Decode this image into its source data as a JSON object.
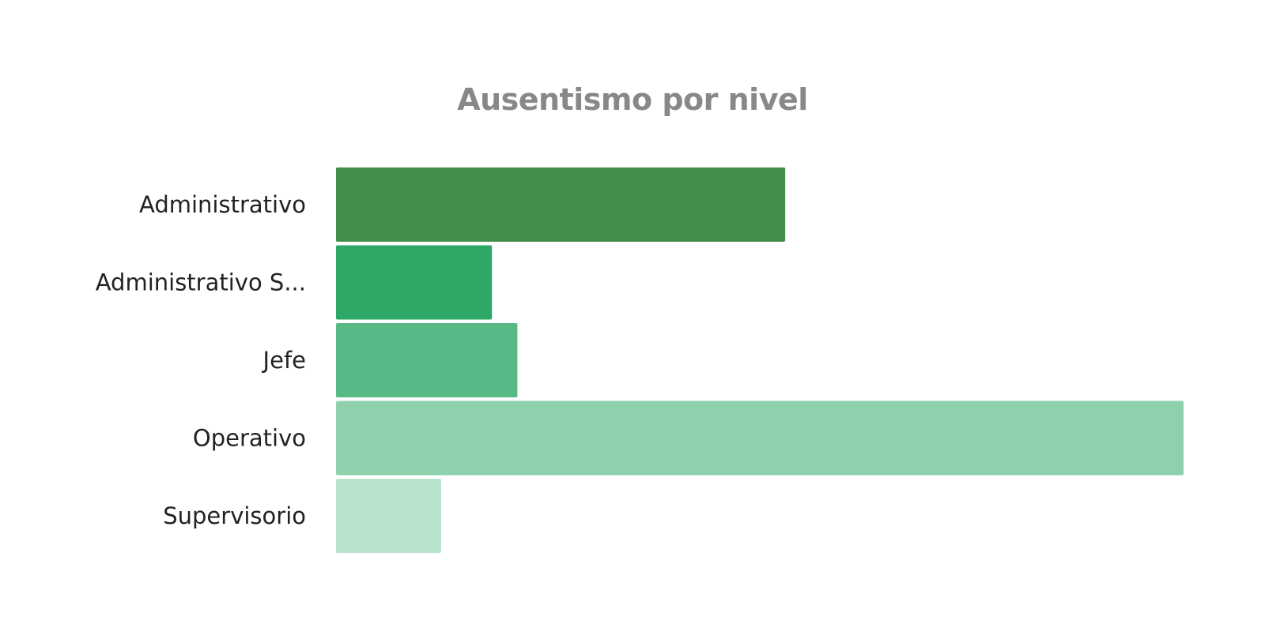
{
  "chart_data": {
    "type": "bar",
    "orientation": "horizontal",
    "title": "Ausentismo por nivel",
    "categories": [
      "Administrativo",
      "Administrativo S...",
      "Jefe",
      "Operativo",
      "Supervisorio"
    ],
    "values": [
      53,
      18.4,
      21.4,
      100,
      12.4
    ],
    "colors": [
      "#438e4a",
      "#2ea866",
      "#57ba86",
      "#8ed1ac",
      "#b9e3cc"
    ],
    "xlim": [
      0,
      100
    ],
    "grid": false,
    "legend": "none"
  }
}
